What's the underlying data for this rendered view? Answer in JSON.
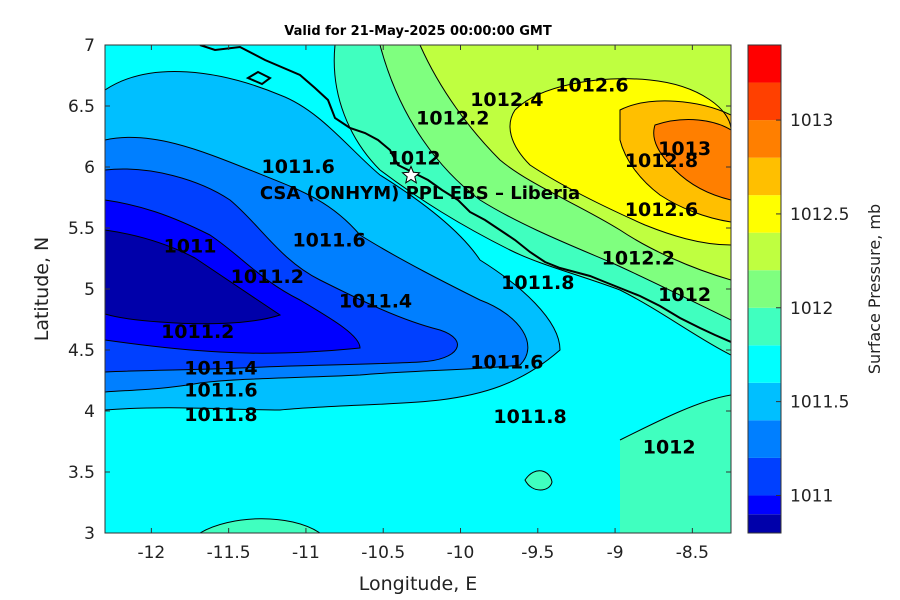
{
  "title": "Valid for 21-May-2025 00:00:00 GMT",
  "chart_data": {
    "type": "contour",
    "xlabel": "Longitude, E",
    "ylabel": "Latitude, N",
    "xlim": [
      -12.3,
      -8.25
    ],
    "ylim": [
      3,
      7
    ],
    "xticks": [
      "-12",
      "-11.5",
      "-11",
      "-10.5",
      "-10",
      "-9.5",
      "-9",
      "-8.5"
    ],
    "yticks": [
      "3",
      "3.5",
      "4",
      "4.5",
      "5",
      "5.5",
      "6",
      "6.5",
      "7"
    ],
    "colorbar": {
      "label": "Surface Pressure, mb",
      "range": [
        1010.8,
        1013.4
      ],
      "ticks": [
        "1011",
        "1011.5",
        "1012",
        "1012.5",
        "1013"
      ],
      "levels": [
        1010.8,
        1010.9,
        1011.0,
        1011.2,
        1011.4,
        1011.6,
        1011.8,
        1012.0,
        1012.2,
        1012.4,
        1012.6,
        1012.8,
        1013.0,
        1013.2,
        1013.4
      ],
      "colors": [
        "#0000aa",
        "#0000ff",
        "#0040ff",
        "#007fff",
        "#00bfff",
        "#00ffff",
        "#40ffbf",
        "#7fff7f",
        "#bfff40",
        "#ffff00",
        "#ffbf00",
        "#ff7f00",
        "#ff4000",
        "#ff0000"
      ]
    },
    "contour_labels": [
      {
        "text": "1011",
        "lon": -11.75,
        "lat": 5.3
      },
      {
        "text": "1011.2",
        "lon": -11.25,
        "lat": 5.05
      },
      {
        "text": "1011.4",
        "lon": -10.55,
        "lat": 4.85
      },
      {
        "text": "1011.6",
        "lon": -10.85,
        "lat": 5.35
      },
      {
        "text": "1011.6",
        "lon": -11.05,
        "lat": 5.95
      },
      {
        "text": "1011.2",
        "lon": -11.7,
        "lat": 4.6
      },
      {
        "text": "1011.4",
        "lon": -11.55,
        "lat": 4.3
      },
      {
        "text": "1011.6",
        "lon": -11.55,
        "lat": 4.12
      },
      {
        "text": "1011.8",
        "lon": -11.55,
        "lat": 3.92
      },
      {
        "text": "1011.6",
        "lon": -9.7,
        "lat": 4.35
      },
      {
        "text": "1011.8",
        "lon": -9.55,
        "lat": 3.9
      },
      {
        "text": "1011.8",
        "lon": -9.5,
        "lat": 5.0
      },
      {
        "text": "1012.2",
        "lon": -10.05,
        "lat": 6.35
      },
      {
        "text": "1012",
        "lon": -10.3,
        "lat": 6.02
      },
      {
        "text": "1012.4",
        "lon": -9.7,
        "lat": 6.5
      },
      {
        "text": "1012.6",
        "lon": -9.15,
        "lat": 6.62
      },
      {
        "text": "1013",
        "lon": -8.55,
        "lat": 6.1
      },
      {
        "text": "1012.8",
        "lon": -8.7,
        "lat": 6.0
      },
      {
        "text": "1012.6",
        "lon": -8.7,
        "lat": 5.6
      },
      {
        "text": "1012.2",
        "lon": -8.85,
        "lat": 5.2
      },
      {
        "text": "1012",
        "lon": -8.55,
        "lat": 4.9
      },
      {
        "text": "1012",
        "lon": -8.65,
        "lat": 3.65
      }
    ],
    "station": {
      "name": "CSA (ONHYM) PPL EBS  – Liberia",
      "lon": -10.32,
      "lat": 5.93
    }
  }
}
